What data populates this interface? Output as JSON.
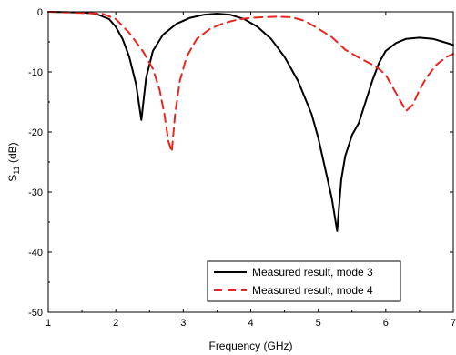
{
  "chart_data": {
    "type": "line",
    "xlabel": "Frequency (GHz)",
    "ylabel_main": "S",
    "ylabel_sub": "11",
    "ylabel_unit": " (dB)",
    "xlim": [
      1,
      7
    ],
    "ylim": [
      -50,
      0
    ],
    "xticks": [
      1,
      2,
      3,
      4,
      5,
      6,
      7
    ],
    "yticks": [
      0,
      -10,
      -20,
      -30,
      -40,
      -50
    ],
    "grid": false,
    "legend_position": "bottom-right",
    "series": [
      {
        "name": "Measured result, mode 3",
        "color": "#000000",
        "dash": "solid",
        "x": [
          1.0,
          1.5,
          1.7,
          1.9,
          2.0,
          2.1,
          2.2,
          2.3,
          2.38,
          2.45,
          2.55,
          2.7,
          2.9,
          3.1,
          3.3,
          3.5,
          3.7,
          3.9,
          4.1,
          4.3,
          4.5,
          4.7,
          4.9,
          5.0,
          5.1,
          5.2,
          5.28,
          5.34,
          5.4,
          5.5,
          5.6,
          5.7,
          5.8,
          5.9,
          6.0,
          6.15,
          6.3,
          6.5,
          6.7,
          6.85,
          7.0
        ],
        "y": [
          0.0,
          -0.1,
          -0.3,
          -1.2,
          -2.5,
          -4.5,
          -7.5,
          -12.0,
          -18.0,
          -11.0,
          -6.5,
          -3.8,
          -2.0,
          -1.0,
          -0.5,
          -0.3,
          -0.5,
          -1.2,
          -2.5,
          -4.5,
          -7.5,
          -11.5,
          -17.0,
          -21.0,
          -26.0,
          -31.0,
          -36.5,
          -28.0,
          -24.0,
          -20.5,
          -18.5,
          -15.0,
          -11.5,
          -8.5,
          -6.5,
          -5.2,
          -4.5,
          -4.3,
          -4.5,
          -5.0,
          -5.5
        ]
      },
      {
        "name": "Measured result, mode 4",
        "color": "#e8251f",
        "dash": "dashed",
        "x": [
          1.0,
          1.8,
          2.0,
          2.2,
          2.4,
          2.55,
          2.65,
          2.72,
          2.78,
          2.83,
          2.88,
          2.95,
          3.05,
          3.2,
          3.4,
          3.6,
          3.8,
          4.0,
          4.2,
          4.4,
          4.6,
          4.8,
          5.0,
          5.2,
          5.4,
          5.6,
          5.8,
          5.9,
          6.0,
          6.1,
          6.2,
          6.3,
          6.4,
          6.5,
          6.6,
          6.75,
          6.9,
          7.0
        ],
        "y": [
          0.0,
          -0.3,
          -1.2,
          -3.5,
          -6.5,
          -9.5,
          -13.0,
          -17.0,
          -21.5,
          -23.3,
          -17.0,
          -11.5,
          -7.5,
          -4.5,
          -2.8,
          -1.9,
          -1.3,
          -1.0,
          -0.9,
          -0.8,
          -0.9,
          -1.5,
          -2.8,
          -4.2,
          -6.3,
          -7.6,
          -8.8,
          -9.5,
          -10.5,
          -12.5,
          -14.5,
          -16.5,
          -15.5,
          -13.0,
          -11.0,
          -8.8,
          -7.5,
          -7.0
        ]
      }
    ]
  }
}
